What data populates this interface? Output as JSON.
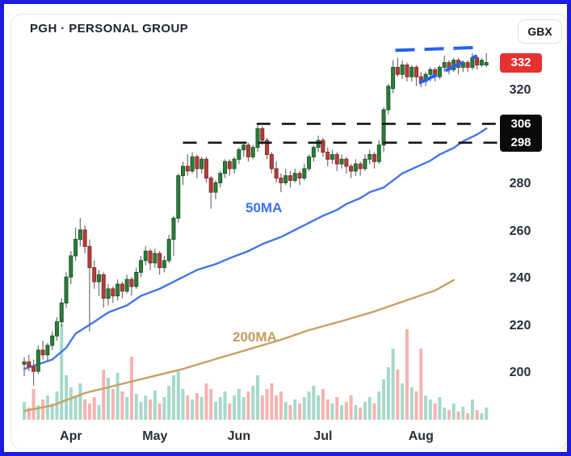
{
  "header": {
    "title": "PGH · PERSONAL GROUP",
    "currency_button": "GBX"
  },
  "price_scale": {
    "last_price_badge": "332",
    "level_badge_top": "306",
    "level_badge_bottom": "298"
  },
  "overlays": {
    "ma50_label": "50MA",
    "ma200_label": "200MA"
  },
  "colors": {
    "candle_up": "#2e7d3a",
    "candle_up_border": "#1c5a27",
    "candle_down": "#b43e3c",
    "candle_down_border": "#8c2a2a",
    "wick": "#6f6f6f",
    "volume_up": "#a6d9cb",
    "volume_down": "#f5b3b1",
    "ma50": "#4477e8",
    "ma200": "#c9a063",
    "trendline": "#2563eb",
    "level_line": "#141414",
    "last_badge_bg": "#e53230",
    "level_badge_bg": "#0b0b0b",
    "frame_border": "#1d1ddd"
  },
  "chart_data": {
    "type": "candlestick",
    "title": "PGH · PERSONAL GROUP",
    "symbol": "PGH",
    "company": "PERSONAL GROUP",
    "currency": "GBX",
    "last_price": 332,
    "y_axis": {
      "ticks": [
        320,
        280,
        260,
        240,
        220,
        200
      ],
      "ylim": [
        193,
        345
      ],
      "unit": "GBX"
    },
    "x_axis": {
      "month_ticks": [
        {
          "label": "Apr",
          "index": 10
        },
        {
          "label": "May",
          "index": 28
        },
        {
          "label": "Jun",
          "index": 46
        },
        {
          "label": "Jul",
          "index": 64
        },
        {
          "label": "Aug",
          "index": 85
        }
      ]
    },
    "levels": [
      {
        "price": 306,
        "from_index": 49.8
      },
      {
        "price": 298,
        "from_index": 34
      }
    ],
    "trendlines": [
      {
        "name": "flag-resistance",
        "from": [
          79.5,
          337.2
        ],
        "to": [
          96.8,
          338.4
        ]
      },
      {
        "name": "flag-support",
        "from": [
          84.6,
          323.3
        ],
        "to": [
          97.0,
          334.9
        ]
      }
    ],
    "ma50": [
      [
        0,
        202
      ],
      [
        6,
        206
      ],
      [
        9,
        211
      ],
      [
        11,
        217
      ],
      [
        15,
        222
      ],
      [
        18,
        226
      ],
      [
        22,
        229
      ],
      [
        25,
        233
      ],
      [
        29,
        236
      ],
      [
        33,
        240
      ],
      [
        37,
        244
      ],
      [
        41,
        246.5
      ],
      [
        44,
        249
      ],
      [
        48,
        252
      ],
      [
        51,
        255
      ],
      [
        55,
        258
      ],
      [
        58,
        261
      ],
      [
        61,
        264
      ],
      [
        64,
        267
      ],
      [
        67,
        269.5
      ],
      [
        69,
        272
      ],
      [
        72,
        274.5
      ],
      [
        74,
        277
      ],
      [
        77,
        279
      ],
      [
        79,
        282
      ],
      [
        81,
        285
      ],
      [
        84,
        287.7
      ],
      [
        87,
        290.4
      ],
      [
        89,
        293
      ],
      [
        92,
        295.8
      ],
      [
        94,
        298.6
      ],
      [
        97,
        301.5
      ],
      [
        99,
        304
      ]
    ],
    "ma200": [
      [
        0,
        184.2
      ],
      [
        6,
        186.5
      ],
      [
        13,
        191.8
      ],
      [
        20,
        195.2
      ],
      [
        27,
        198.6
      ],
      [
        34,
        202
      ],
      [
        41,
        206.2
      ],
      [
        48,
        210.3
      ],
      [
        55,
        214.4
      ],
      [
        61,
        218.5
      ],
      [
        68,
        222.3
      ],
      [
        75,
        226.4
      ],
      [
        82,
        231.2
      ],
      [
        88,
        235.3
      ],
      [
        92,
        239.7
      ]
    ],
    "candles": [
      [
        204,
        207,
        199,
        205
      ],
      [
        205,
        208,
        201,
        203
      ],
      [
        203,
        206,
        195,
        201
      ],
      [
        201,
        212,
        200,
        210
      ],
      [
        210,
        214,
        206,
        208
      ],
      [
        208,
        213,
        205,
        212
      ],
      [
        212,
        218,
        210,
        216
      ],
      [
        216,
        224,
        214,
        222
      ],
      [
        222,
        232,
        220,
        230
      ],
      [
        230,
        243,
        228,
        241
      ],
      [
        241,
        252,
        238,
        250
      ],
      [
        250,
        262,
        248,
        257
      ],
      [
        257,
        266,
        254,
        261
      ],
      [
        261,
        263,
        251,
        254
      ],
      [
        254,
        257,
        218,
        245
      ],
      [
        245,
        248,
        236,
        239
      ],
      [
        239,
        244,
        233,
        242
      ],
      [
        242,
        243,
        228,
        232
      ],
      [
        232,
        238,
        229,
        236
      ],
      [
        236,
        237,
        230,
        233
      ],
      [
        233,
        240,
        231,
        238
      ],
      [
        238,
        239,
        232,
        235
      ],
      [
        235,
        242,
        234,
        240
      ],
      [
        240,
        241,
        233,
        237
      ],
      [
        237,
        245,
        236,
        243
      ],
      [
        243,
        250,
        241,
        248
      ],
      [
        248,
        254,
        246,
        252
      ],
      [
        252,
        253,
        244,
        247
      ],
      [
        247,
        253,
        245,
        251
      ],
      [
        251,
        252,
        242,
        245
      ],
      [
        245,
        250,
        243,
        248
      ],
      [
        248,
        259,
        247,
        257
      ],
      [
        257,
        267,
        250,
        266
      ],
      [
        266,
        285,
        264,
        284
      ],
      [
        284,
        290,
        280,
        288
      ],
      [
        288,
        293,
        284,
        286
      ],
      [
        286,
        294,
        285,
        292
      ],
      [
        292,
        293,
        283,
        287
      ],
      [
        287,
        292,
        285,
        291
      ],
      [
        291,
        292,
        281,
        283
      ],
      [
        283,
        284,
        270,
        277
      ],
      [
        277,
        282,
        274,
        281
      ],
      [
        281,
        286,
        279,
        285
      ],
      [
        285,
        291,
        283,
        290
      ],
      [
        290,
        291,
        284,
        287
      ],
      [
        287,
        292,
        285,
        291
      ],
      [
        291,
        296,
        289,
        295
      ],
      [
        295,
        298,
        292,
        297
      ],
      [
        297,
        298,
        290,
        292
      ],
      [
        292,
        297,
        291,
        296
      ],
      [
        296,
        306,
        294,
        304
      ],
      [
        304,
        305,
        297,
        299
      ],
      [
        299,
        300,
        291,
        293
      ],
      [
        293,
        294,
        285,
        287
      ],
      [
        287,
        290,
        281,
        283
      ],
      [
        283,
        285,
        277,
        281
      ],
      [
        281,
        287,
        280,
        284
      ],
      [
        284,
        286,
        279,
        282
      ],
      [
        282,
        287,
        281,
        285
      ],
      [
        285,
        286,
        280,
        283
      ],
      [
        283,
        289,
        282,
        287
      ],
      [
        287,
        293,
        286,
        292
      ],
      [
        292,
        297,
        290,
        296
      ],
      [
        296,
        301,
        294,
        299
      ],
      [
        299,
        300,
        292,
        294
      ],
      [
        294,
        296,
        288,
        291
      ],
      [
        291,
        295,
        289,
        293
      ],
      [
        293,
        294,
        286,
        289
      ],
      [
        289,
        293,
        287,
        291
      ],
      [
        291,
        292,
        285,
        288
      ],
      [
        288,
        289,
        283,
        286
      ],
      [
        286,
        291,
        284,
        289
      ],
      [
        289,
        290,
        284,
        287
      ],
      [
        287,
        293,
        286,
        291
      ],
      [
        291,
        295,
        289,
        293
      ],
      [
        293,
        294,
        287,
        290
      ],
      [
        290,
        299,
        289,
        297
      ],
      [
        297,
        313,
        294,
        312
      ],
      [
        312,
        323,
        310,
        322
      ],
      [
        321,
        333,
        319,
        330
      ],
      [
        330,
        334,
        326,
        327
      ],
      [
        327,
        333,
        325,
        331
      ],
      [
        331,
        332,
        324,
        326
      ],
      [
        326,
        331,
        324,
        330
      ],
      [
        330,
        331,
        322,
        326
      ],
      [
        326,
        328,
        321.5,
        324
      ],
      [
        324,
        328,
        322,
        327
      ],
      [
        327,
        330,
        324,
        329
      ],
      [
        329,
        330,
        324,
        326
      ],
      [
        326,
        331,
        325,
        330
      ],
      [
        330,
        335,
        328,
        332
      ],
      [
        332,
        333,
        327,
        329
      ],
      [
        329,
        334,
        328,
        333
      ],
      [
        333,
        334,
        327,
        330
      ],
      [
        330,
        333,
        328,
        332
      ],
      [
        332,
        333,
        328,
        330
      ],
      [
        330,
        336,
        329,
        334
      ],
      [
        334,
        335,
        329,
        331
      ],
      [
        331,
        334,
        330,
        333
      ],
      [
        331,
        336,
        330,
        332
      ]
    ],
    "volumes": [
      22,
      15,
      38,
      18,
      25,
      30,
      20,
      35,
      118,
      55,
      40,
      30,
      45,
      25,
      20,
      28,
      18,
      62,
      52,
      38,
      58,
      35,
      28,
      78,
      32,
      22,
      30,
      25,
      36,
      20,
      28,
      42,
      55,
      60,
      38,
      30,
      25,
      33,
      28,
      45,
      38,
      22,
      28,
      35,
      20,
      30,
      38,
      28,
      35,
      42,
      55,
      30,
      38,
      45,
      30,
      35,
      22,
      18,
      25,
      20,
      28,
      35,
      42,
      30,
      38,
      25,
      20,
      28,
      18,
      22,
      30,
      18,
      15,
      22,
      28,
      20,
      35,
      50,
      65,
      88,
      62,
      45,
      112,
      40,
      35,
      88,
      30,
      25,
      20,
      28,
      15,
      12,
      20,
      10,
      16,
      8,
      25,
      12,
      8,
      15
    ]
  }
}
